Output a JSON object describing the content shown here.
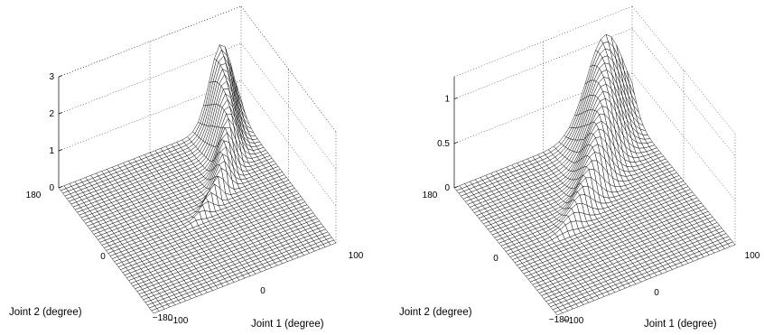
{
  "chart_data": [
    {
      "type": "surface",
      "title": "",
      "xlabel": "Joint 1 (degree)",
      "ylabel": "Joint 2 (degree)",
      "zlabel": "",
      "xlim": [
        -100,
        100
      ],
      "ylim": [
        -180,
        180
      ],
      "zlim": [
        0,
        3
      ],
      "xticks": [
        "−100",
        "0",
        "100"
      ],
      "yticks": [
        "−180",
        "0",
        "180"
      ],
      "zticks": [
        "0",
        "1",
        "2",
        "3"
      ],
      "grid": true,
      "colormap": "white faces, black mesh",
      "surface": {
        "description_of_values": "zero everywhere except a narrow curved ridge",
        "peak_value": 2.2,
        "peak_location": {
          "joint1": 78,
          "joint2": 180
        },
        "ridge_path_joint1": [
          78,
          60,
          35,
          10,
          -10
        ],
        "ridge_path_joint2": [
          180,
          90,
          30,
          0,
          -20
        ],
        "ridge_width_joint1": 18
      }
    },
    {
      "type": "surface",
      "title": "",
      "xlabel": "Joint 1 (degree)",
      "ylabel": "Joint 2 (degree)",
      "zlabel": "",
      "xlim": [
        -100,
        100
      ],
      "ylim": [
        -180,
        180
      ],
      "zlim": [
        0,
        1.25
      ],
      "xticks": [
        "−100",
        "0",
        "100"
      ],
      "yticks": [
        "−180",
        "0",
        "180"
      ],
      "zticks": [
        "0",
        "0.5",
        "1"
      ],
      "grid": true,
      "colormap": "white faces, black mesh",
      "surface": {
        "description_of_values": "zero on most of the domain, broad hump along the joint-2 = 180 edge",
        "peak_value": 1.05,
        "peak_location": {
          "joint1": 70,
          "joint2": 180
        },
        "ridge_path_joint1": [
          70,
          45,
          15,
          -15,
          -40
        ],
        "ridge_path_joint2": [
          180,
          110,
          50,
          10,
          -20
        ],
        "ridge_width_joint1": 30
      }
    }
  ]
}
